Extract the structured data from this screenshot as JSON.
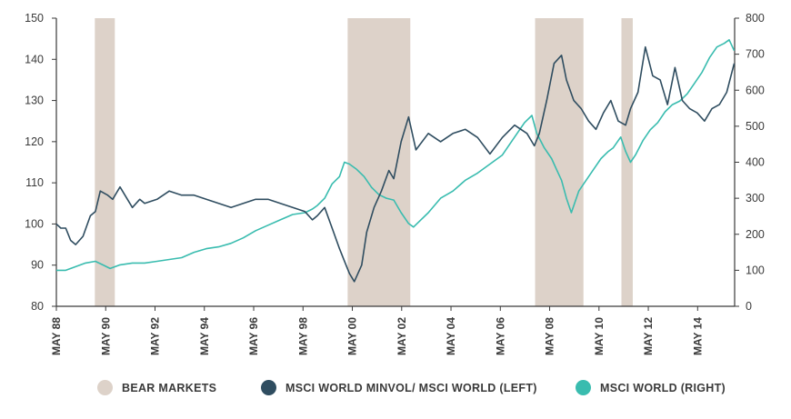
{
  "colors": {
    "bear": "#ddd2c9",
    "minvol": "#2f4d60",
    "world": "#39bcaf",
    "axis": "#3a3a3a"
  },
  "chart_data": {
    "type": "line",
    "title": "",
    "left_axis": {
      "min": 80,
      "max": 150,
      "ticks": [
        80,
        90,
        100,
        110,
        120,
        130,
        140,
        150
      ]
    },
    "right_axis": {
      "min": 0,
      "max": 800,
      "ticks": [
        0,
        100,
        200,
        300,
        400,
        500,
        600,
        700,
        800
      ]
    },
    "x_range": [
      1988.42,
      2015.92
    ],
    "x_ticks": [
      {
        "t": 1988.42,
        "label": "MAY 88"
      },
      {
        "t": 1990.42,
        "label": "MAY 90"
      },
      {
        "t": 1992.42,
        "label": "MAY 92"
      },
      {
        "t": 1994.42,
        "label": "MAY 94"
      },
      {
        "t": 1996.42,
        "label": "MAY 96"
      },
      {
        "t": 1998.42,
        "label": "MAY 98"
      },
      {
        "t": 2000.42,
        "label": "MAY 00"
      },
      {
        "t": 2002.42,
        "label": "MAY 02"
      },
      {
        "t": 2004.42,
        "label": "MAY 04"
      },
      {
        "t": 2006.42,
        "label": "MAY 06"
      },
      {
        "t": 2008.42,
        "label": "MAY 08"
      },
      {
        "t": 2010.42,
        "label": "MAY 10"
      },
      {
        "t": 2012.42,
        "label": "MAY 12"
      },
      {
        "t": 2014.42,
        "label": "MAY 14"
      }
    ],
    "bear_markets": [
      [
        1989.98,
        1990.79
      ],
      [
        2000.23,
        2002.77
      ],
      [
        2007.83,
        2009.79
      ],
      [
        2011.33,
        2011.79
      ]
    ],
    "series": [
      {
        "name": "MSCI WORLD MINVOL/ MSCI WORLD (LEFT)",
        "axis": "left",
        "t": [
          1988.42,
          1988.6,
          1988.8,
          1989.0,
          1989.2,
          1989.5,
          1989.8,
          1990.0,
          1990.2,
          1990.5,
          1990.7,
          1991.0,
          1991.2,
          1991.5,
          1991.8,
          1992.0,
          1992.5,
          1993.0,
          1993.5,
          1994.0,
          1994.5,
          1995.0,
          1995.5,
          1996.0,
          1996.5,
          1997.0,
          1997.5,
          1998.0,
          1998.5,
          1998.8,
          1999.0,
          1999.3,
          1999.6,
          1999.9,
          2000.1,
          2000.3,
          2000.5,
          2000.8,
          2001.0,
          2001.3,
          2001.6,
          2001.9,
          2002.1,
          2002.4,
          2002.7,
          2003.0,
          2003.5,
          2004.0,
          2004.5,
          2005.0,
          2005.5,
          2006.0,
          2006.5,
          2007.0,
          2007.5,
          2007.8,
          2008.0,
          2008.3,
          2008.6,
          2008.9,
          2009.1,
          2009.4,
          2009.7,
          2010.0,
          2010.3,
          2010.6,
          2010.9,
          2011.2,
          2011.5,
          2011.7,
          2012.0,
          2012.3,
          2012.6,
          2012.9,
          2013.2,
          2013.5,
          2013.8,
          2014.1,
          2014.4,
          2014.7,
          2015.0,
          2015.3,
          2015.6,
          2015.9
        ],
        "values": [
          100,
          99,
          99,
          96,
          95,
          97,
          102,
          103,
          108,
          107,
          106,
          109,
          107,
          104,
          106,
          105,
          106,
          108,
          107,
          107,
          106,
          105,
          104,
          105,
          106,
          106,
          105,
          104,
          103,
          101,
          102,
          104,
          99,
          94,
          91,
          88,
          86,
          90,
          98,
          104,
          108,
          113,
          111,
          120,
          126,
          118,
          122,
          120,
          122,
          123,
          121,
          117,
          121,
          124,
          122,
          119,
          122,
          130,
          139,
          141,
          135,
          130,
          128,
          125,
          123,
          127,
          130,
          125,
          124,
          128,
          132,
          143,
          136,
          135,
          129,
          138,
          130,
          128,
          127,
          125,
          128,
          129,
          132,
          139
        ]
      },
      {
        "name": "MSCI WORLD (RIGHT)",
        "axis": "right",
        "t": [
          1988.42,
          1988.8,
          1989.2,
          1989.6,
          1990.0,
          1990.3,
          1990.6,
          1990.8,
          1991.0,
          1991.5,
          1992.0,
          1992.5,
          1993.0,
          1993.5,
          1994.0,
          1994.5,
          1995.0,
          1995.5,
          1996.0,
          1996.5,
          1997.0,
          1997.5,
          1998.0,
          1998.5,
          1998.8,
          1999.0,
          1999.3,
          1999.6,
          1999.9,
          2000.1,
          2000.3,
          2000.6,
          2000.9,
          2001.2,
          2001.5,
          2001.8,
          2002.1,
          2002.4,
          2002.7,
          2002.9,
          2003.2,
          2003.5,
          2004.0,
          2004.5,
          2005.0,
          2005.5,
          2006.0,
          2006.5,
          2007.0,
          2007.4,
          2007.7,
          2007.9,
          2008.2,
          2008.5,
          2008.7,
          2008.9,
          2009.1,
          2009.3,
          2009.6,
          2009.9,
          2010.2,
          2010.5,
          2010.8,
          2011.0,
          2011.3,
          2011.5,
          2011.7,
          2011.9,
          2012.2,
          2012.5,
          2012.8,
          2013.1,
          2013.4,
          2013.7,
          2014.0,
          2014.3,
          2014.6,
          2014.9,
          2015.2,
          2015.5,
          2015.7,
          2015.9
        ],
        "values": [
          100,
          100,
          110,
          120,
          125,
          115,
          105,
          110,
          115,
          120,
          120,
          125,
          130,
          135,
          150,
          160,
          165,
          175,
          190,
          210,
          225,
          240,
          255,
          260,
          270,
          280,
          300,
          340,
          360,
          400,
          395,
          380,
          360,
          330,
          310,
          300,
          295,
          260,
          230,
          220,
          240,
          260,
          300,
          320,
          350,
          370,
          395,
          420,
          470,
          510,
          530,
          480,
          440,
          410,
          380,
          350,
          300,
          260,
          320,
          350,
          380,
          410,
          430,
          440,
          470,
          430,
          400,
          420,
          460,
          490,
          510,
          540,
          560,
          570,
          590,
          620,
          650,
          690,
          720,
          730,
          740,
          710
        ]
      }
    ]
  },
  "legend": {
    "bear": "BEAR MARKETS",
    "minvol": "MSCI WORLD MINVOL/ MSCI WORLD (LEFT)",
    "world": "MSCI WORLD (RIGHT)"
  }
}
